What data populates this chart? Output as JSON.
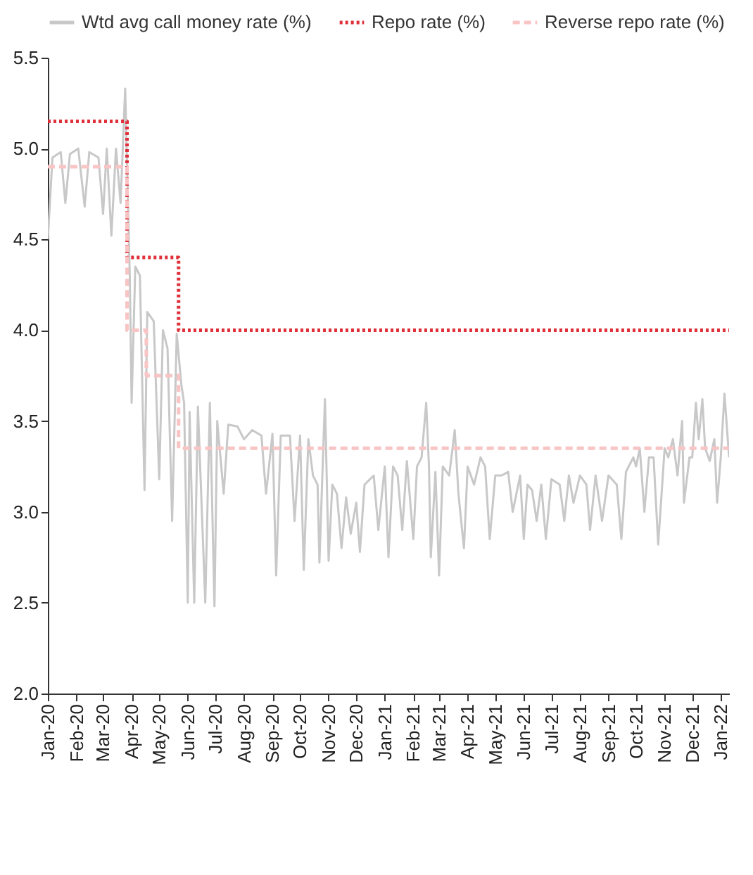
{
  "chart_data": {
    "type": "line",
    "xlim": [
      "2020-01-01",
      "2022-01-10"
    ],
    "xticks": [
      {
        "value": "2020-01-01",
        "label": "Jan-20"
      },
      {
        "value": "2020-02-01",
        "label": "Feb-20"
      },
      {
        "value": "2020-03-01",
        "label": "Mar-20"
      },
      {
        "value": "2020-04-01",
        "label": "Apr-20"
      },
      {
        "value": "2020-05-01",
        "label": "May-20"
      },
      {
        "value": "2020-06-01",
        "label": "Jun-20"
      },
      {
        "value": "2020-07-01",
        "label": "Jul-20"
      },
      {
        "value": "2020-08-01",
        "label": "Aug-20"
      },
      {
        "value": "2020-09-01",
        "label": "Sep-20"
      },
      {
        "value": "2020-10-01",
        "label": "Oct-20"
      },
      {
        "value": "2020-11-01",
        "label": "Nov-20"
      },
      {
        "value": "2020-12-01",
        "label": "Dec-20"
      },
      {
        "value": "2021-01-01",
        "label": "Jan-21"
      },
      {
        "value": "2021-02-01",
        "label": "Feb-21"
      },
      {
        "value": "2021-03-01",
        "label": "Mar-21"
      },
      {
        "value": "2021-04-01",
        "label": "Apr-21"
      },
      {
        "value": "2021-05-01",
        "label": "May-21"
      },
      {
        "value": "2021-06-01",
        "label": "Jun-21"
      },
      {
        "value": "2021-07-01",
        "label": "Jul-21"
      },
      {
        "value": "2021-08-01",
        "label": "Aug-21"
      },
      {
        "value": "2021-09-01",
        "label": "Sep-21"
      },
      {
        "value": "2021-10-01",
        "label": "Oct-21"
      },
      {
        "value": "2021-11-01",
        "label": "Nov-21"
      },
      {
        "value": "2021-12-01",
        "label": "Dec-21"
      },
      {
        "value": "2022-01-01",
        "label": "Jan-22"
      }
    ],
    "ylim": [
      2.0,
      5.5
    ],
    "yticks": [
      {
        "value": 2,
        "label": "2.0"
      },
      {
        "value": 2.5,
        "label": "2.5"
      },
      {
        "value": 3,
        "label": "3.0"
      },
      {
        "value": 3.5,
        "label": "3.5"
      },
      {
        "value": 4,
        "label": "4.0"
      },
      {
        "value": 4.5,
        "label": "4.5"
      },
      {
        "value": 5,
        "label": "5.0"
      },
      {
        "value": 5.5,
        "label": "5.5"
      }
    ],
    "grid": false,
    "legend": "top",
    "series": [
      {
        "name": "Wtd avg call money rate (%)",
        "type": "line",
        "line_style": "solid",
        "color": "#c8c8c8",
        "x": [
          "2020-01-01",
          "2020-01-06",
          "2020-01-15",
          "2020-01-20",
          "2020-01-25",
          "2020-02-03",
          "2020-02-10",
          "2020-02-15",
          "2020-02-25",
          "2020-03-01",
          "2020-03-05",
          "2020-03-10",
          "2020-03-15",
          "2020-03-20",
          "2020-03-25",
          "2020-03-30",
          "2020-04-01",
          "2020-04-05",
          "2020-04-10",
          "2020-04-15",
          "2020-04-18",
          "2020-04-25",
          "2020-05-01",
          "2020-05-05",
          "2020-05-10",
          "2020-05-15",
          "2020-05-20",
          "2020-05-25",
          "2020-05-28",
          "2020-06-01",
          "2020-06-03",
          "2020-06-08",
          "2020-06-12",
          "2020-06-20",
          "2020-06-25",
          "2020-06-30",
          "2020-07-03",
          "2020-07-10",
          "2020-07-15",
          "2020-07-25",
          "2020-08-01",
          "2020-08-10",
          "2020-08-20",
          "2020-08-25",
          "2020-09-01",
          "2020-09-05",
          "2020-09-10",
          "2020-09-20",
          "2020-09-25",
          "2020-10-01",
          "2020-10-05",
          "2020-10-10",
          "2020-10-15",
          "2020-10-20",
          "2020-10-22",
          "2020-10-28",
          "2020-11-01",
          "2020-11-05",
          "2020-11-10",
          "2020-11-15",
          "2020-11-20",
          "2020-11-25",
          "2020-12-01",
          "2020-12-05",
          "2020-12-10",
          "2020-12-20",
          "2020-12-25",
          "2021-01-01",
          "2021-01-05",
          "2021-01-10",
          "2021-01-15",
          "2021-01-20",
          "2021-01-25",
          "2021-02-01",
          "2021-02-05",
          "2021-02-10",
          "2021-02-15",
          "2021-02-18",
          "2021-02-20",
          "2021-02-25",
          "2021-03-01",
          "2021-03-05",
          "2021-03-12",
          "2021-03-18",
          "2021-03-22",
          "2021-03-28",
          "2021-04-01",
          "2021-04-08",
          "2021-04-15",
          "2021-04-20",
          "2021-04-25",
          "2021-05-01",
          "2021-05-08",
          "2021-05-15",
          "2021-05-20",
          "2021-05-28",
          "2021-06-01",
          "2021-06-05",
          "2021-06-10",
          "2021-06-15",
          "2021-06-20",
          "2021-06-25",
          "2021-07-01",
          "2021-07-10",
          "2021-07-15",
          "2021-07-20",
          "2021-07-25",
          "2021-08-01",
          "2021-08-08",
          "2021-08-12",
          "2021-08-18",
          "2021-08-25",
          "2021-09-01",
          "2021-09-10",
          "2021-09-15",
          "2021-09-20",
          "2021-09-28",
          "2021-10-01",
          "2021-10-05",
          "2021-10-10",
          "2021-10-15",
          "2021-10-20",
          "2021-10-25",
          "2021-11-01",
          "2021-11-05",
          "2021-11-10",
          "2021-11-15",
          "2021-11-20",
          "2021-11-22",
          "2021-11-28",
          "2021-12-01",
          "2021-12-05",
          "2021-12-08",
          "2021-12-12",
          "2021-12-15",
          "2021-12-20",
          "2021-12-25",
          "2021-12-28",
          "2022-01-01",
          "2022-01-05",
          "2022-01-10"
        ],
        "values": [
          4.5,
          4.95,
          4.98,
          4.7,
          4.97,
          5.0,
          4.68,
          4.98,
          4.95,
          4.64,
          5.0,
          4.52,
          5.0,
          4.7,
          5.33,
          4.3,
          3.6,
          4.35,
          4.3,
          3.12,
          4.1,
          4.05,
          3.18,
          4.0,
          3.9,
          2.95,
          3.98,
          3.7,
          3.6,
          2.5,
          3.55,
          2.5,
          3.58,
          2.5,
          3.6,
          2.48,
          3.5,
          3.1,
          3.48,
          3.47,
          3.4,
          3.45,
          3.42,
          3.1,
          3.43,
          2.65,
          3.42,
          3.42,
          2.95,
          3.42,
          2.68,
          3.4,
          3.2,
          3.15,
          2.72,
          3.62,
          2.73,
          3.15,
          3.1,
          2.8,
          3.08,
          2.88,
          3.05,
          2.78,
          3.15,
          3.2,
          2.9,
          3.25,
          2.75,
          3.25,
          3.2,
          2.9,
          3.28,
          2.85,
          3.25,
          3.3,
          3.6,
          3.25,
          2.75,
          3.22,
          2.65,
          3.25,
          3.2,
          3.45,
          3.1,
          2.8,
          3.25,
          3.15,
          3.3,
          3.25,
          2.85,
          3.2,
          3.2,
          3.22,
          3.0,
          3.2,
          2.85,
          3.15,
          3.12,
          2.95,
          3.15,
          2.85,
          3.18,
          3.15,
          2.95,
          3.2,
          3.05,
          3.2,
          3.15,
          2.9,
          3.2,
          2.95,
          3.2,
          3.15,
          2.85,
          3.22,
          3.3,
          3.25,
          3.35,
          3.0,
          3.3,
          3.3,
          2.82,
          3.35,
          3.3,
          3.4,
          3.2,
          3.5,
          3.05,
          3.3,
          3.3,
          3.6,
          3.4,
          3.62,
          3.35,
          3.28,
          3.4,
          3.05,
          3.3,
          3.65,
          3.3
        ]
      },
      {
        "name": "Repo rate (%)",
        "type": "step",
        "line_style": "dotted",
        "color": "#e0303a",
        "x": [
          "2020-01-01",
          "2020-03-27",
          "2020-05-22",
          "2022-01-10"
        ],
        "values": [
          5.15,
          4.4,
          4.0,
          4.0
        ]
      },
      {
        "name": "Reverse repo rate (%)",
        "type": "step",
        "line_style": "dashed",
        "color": "#f8c4c4",
        "x": [
          "2020-01-01",
          "2020-03-27",
          "2020-04-17",
          "2020-05-22",
          "2022-01-10"
        ],
        "values": [
          4.9,
          4.0,
          3.75,
          3.35,
          3.35
        ]
      }
    ]
  }
}
